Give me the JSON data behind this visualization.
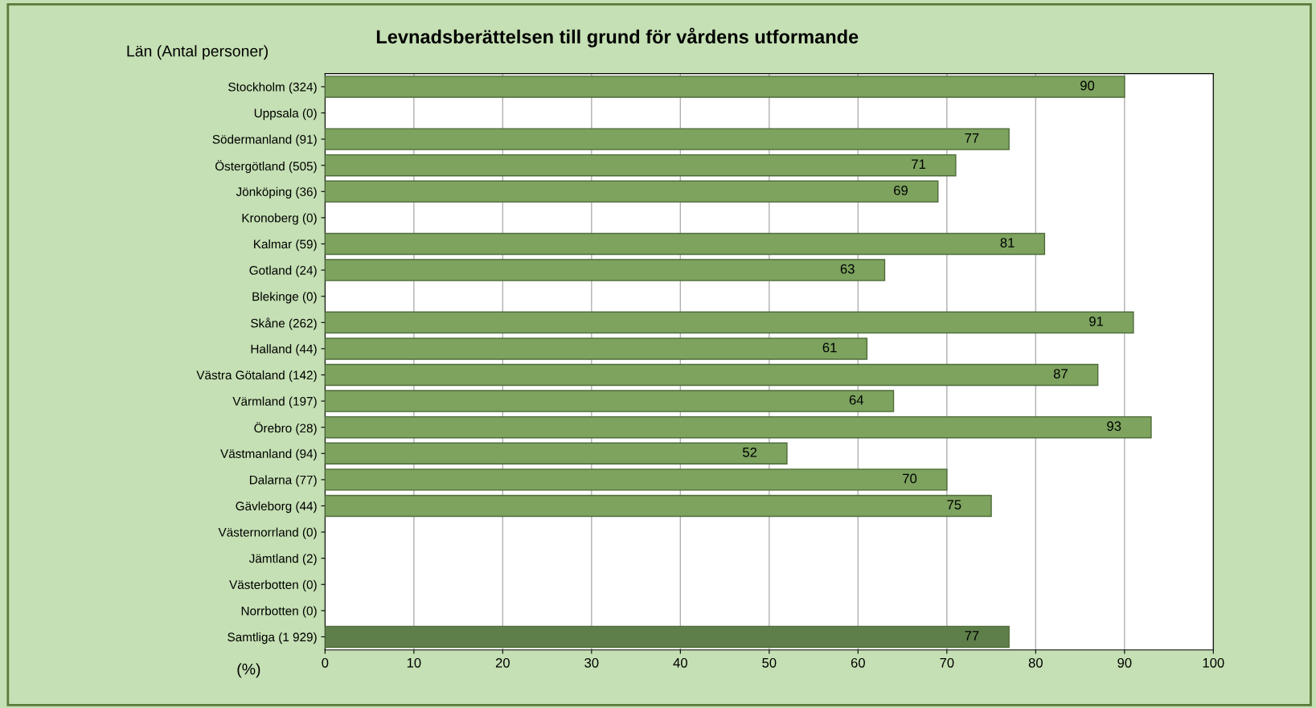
{
  "chart_data": {
    "type": "bar",
    "orientation": "horizontal",
    "title": "Levnadsberättelsen till grund för vårdens utformande",
    "ylabel": "Län (Antal personer)",
    "xlabel": "(%)",
    "categories": [
      "Stockholm (324)",
      "Uppsala (0)",
      "Södermanland (91)",
      "Östergötland (505)",
      "Jönköping (36)",
      "Kronoberg (0)",
      "Kalmar (59)",
      "Gotland (24)",
      "Blekinge (0)",
      "Skåne (262)",
      "Halland (44)",
      "Västra Götaland (142)",
      "Värmland (197)",
      "Örebro (28)",
      "Västmanland (94)",
      "Dalarna (77)",
      "Gävleborg (44)",
      "Västernorrland (0)",
      "Jämtland (2)",
      "Västerbotten (0)",
      "Norrbotten (0)",
      "Samtliga (1 929)"
    ],
    "values": [
      90,
      null,
      77,
      71,
      69,
      null,
      81,
      63,
      null,
      91,
      61,
      87,
      64,
      93,
      52,
      70,
      75,
      null,
      null,
      null,
      null,
      77
    ],
    "colors": [
      "#7da35f",
      "#7da35f",
      "#7da35f",
      "#7da35f",
      "#7da35f",
      "#7da35f",
      "#7da35f",
      "#7da35f",
      "#7da35f",
      "#7da35f",
      "#7da35f",
      "#7da35f",
      "#7da35f",
      "#7da35f",
      "#7da35f",
      "#7da35f",
      "#7da35f",
      "#7da35f",
      "#7da35f",
      "#7da35f",
      "#7da35f",
      "#5f7f4a"
    ],
    "xlim": [
      0,
      100
    ],
    "xticks": [
      0,
      10,
      20,
      30,
      40,
      50,
      60,
      70,
      80,
      90,
      100
    ],
    "grid": "x",
    "data_labels": true,
    "legend": false
  }
}
